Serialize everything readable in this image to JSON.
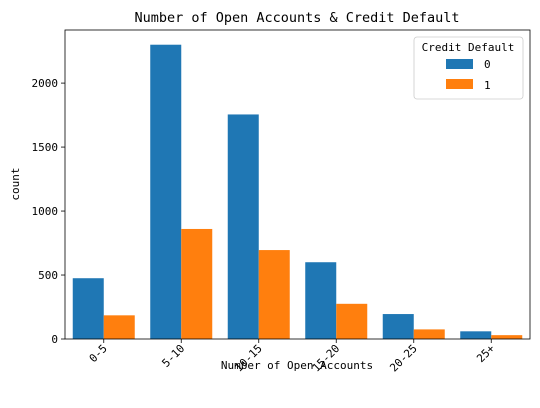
{
  "chart_data": {
    "type": "bar",
    "title": "Number of Open Accounts & Credit Default",
    "xlabel": "Number of Open Accounts",
    "ylabel": "count",
    "categories": [
      "0-5",
      "5-10",
      "10-15",
      "15-20",
      "20-25",
      "25+"
    ],
    "series": [
      {
        "name": "0",
        "color": "#1f77b4",
        "values": [
          475,
          2300,
          1755,
          600,
          195,
          60
        ]
      },
      {
        "name": "1",
        "color": "#ff7f0e",
        "values": [
          185,
          860,
          695,
          275,
          75,
          30
        ]
      }
    ],
    "ylim": [
      0,
      2415
    ],
    "yticks": [
      0,
      500,
      1000,
      1500,
      2000
    ],
    "legend": {
      "title": "Credit Default",
      "placement": "top-right"
    },
    "grid": false
  }
}
